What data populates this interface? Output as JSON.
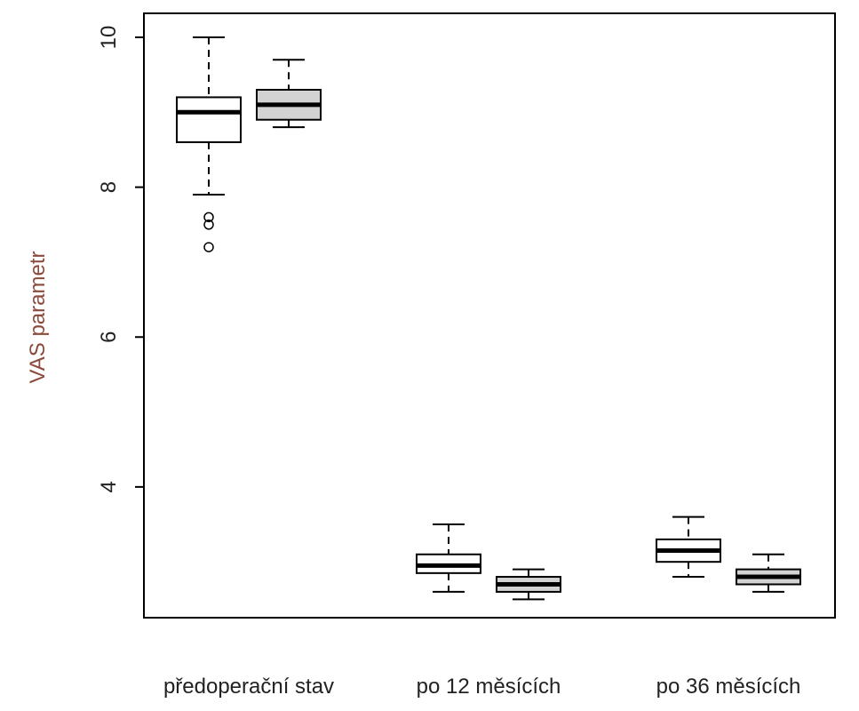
{
  "chart_data": {
    "type": "boxplot",
    "y_label": "VAS parametr",
    "categories": [
      "předoperační stav",
      "po 12 měsících",
      "po 36 měsících"
    ],
    "series": [
      {
        "color": "#ffffff",
        "values": [
          {
            "min": 7.9,
            "q1": 8.6,
            "median": 9.0,
            "q3": 9.2,
            "max": 10.0,
            "outliers": [
              7.6,
              7.5,
              7.2
            ]
          },
          {
            "min": 2.6,
            "q1": 2.85,
            "median": 2.95,
            "q3": 3.1,
            "max": 3.5,
            "outliers": []
          },
          {
            "min": 2.8,
            "q1": 3.0,
            "median": 3.15,
            "q3": 3.3,
            "max": 3.6,
            "outliers": []
          }
        ]
      },
      {
        "color": "#d3d3d3",
        "values": [
          {
            "min": 8.8,
            "q1": 8.9,
            "median": 9.1,
            "q3": 9.3,
            "max": 9.7,
            "outliers": []
          },
          {
            "min": 2.5,
            "q1": 2.6,
            "median": 2.7,
            "q3": 2.8,
            "max": 2.9,
            "outliers": []
          },
          {
            "min": 2.6,
            "q1": 2.7,
            "median": 2.8,
            "q3": 2.9,
            "max": 3.1,
            "outliers": []
          }
        ]
      }
    ],
    "ylim": [
      2.255,
      10.32
    ],
    "yticks": [
      4,
      6,
      8,
      10
    ]
  }
}
